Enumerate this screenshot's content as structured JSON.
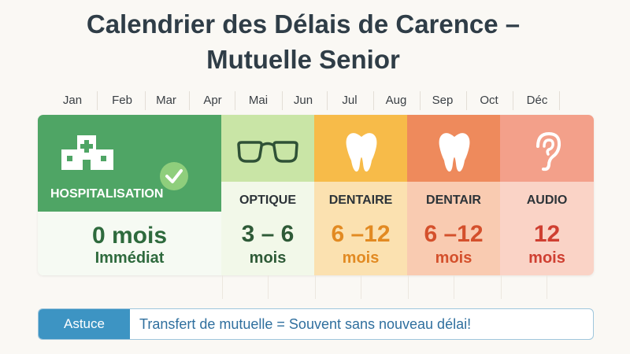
{
  "title_line1": "Calendrier des Délais de Carence –",
  "title_line2": "Mutuelle Senior",
  "months": [
    "Jan",
    "Feb",
    "Mar",
    "Apr",
    "Mai",
    "Jun",
    "Jul",
    "Aug",
    "Sep",
    "Oct",
    "Déc"
  ],
  "categories": [
    {
      "label": "HOSPITALISATION",
      "value": "0 mois",
      "sub": "Immédiat",
      "icon": "hospital-icon",
      "color": "#4fa565"
    },
    {
      "label": "OPTIQUE",
      "value": "3 – 6",
      "sub": "mois",
      "icon": "glasses-icon",
      "color": "#c9e5a6"
    },
    {
      "label": "DENTAIRE",
      "value": "6 –12",
      "sub": "mois",
      "icon": "tooth-icon",
      "color": "#f7bb49"
    },
    {
      "label": "DENTAIR",
      "value": "6 –12",
      "sub": "mois",
      "icon": "tooth-icon",
      "color": "#ee8a5c"
    },
    {
      "label": "AUDIO",
      "value": "12",
      "sub": "mois",
      "icon": "ear-icon",
      "color": "#f3a08a"
    }
  ],
  "check_icon": "check-icon",
  "tip": {
    "tag": "Astuce",
    "text": "Transfert de mutuelle = Souvent sans nouveau délai!"
  }
}
